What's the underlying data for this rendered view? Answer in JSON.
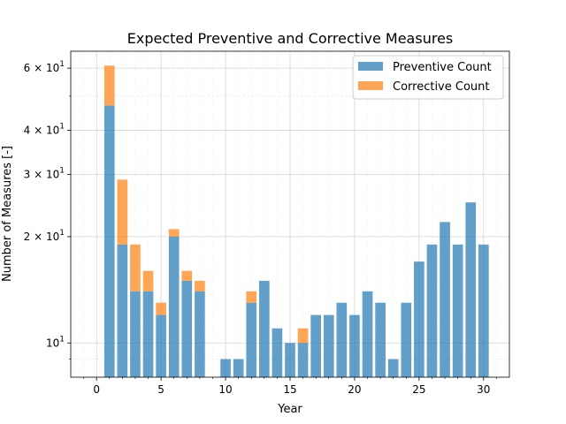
{
  "chart_data": {
    "type": "bar",
    "stacked": true,
    "title": "Expected Preventive and Corrective Measures",
    "xlabel": "Year",
    "ylabel": "Number of Measures [-]",
    "yscale": "log",
    "xlim": [
      -2,
      32
    ],
    "ylim": [
      8,
      67
    ],
    "grid": true,
    "legend_position": "top-right",
    "x_ticks": [
      {
        "value": 0,
        "label": "0"
      },
      {
        "value": 5,
        "label": "5"
      },
      {
        "value": 10,
        "label": "10"
      },
      {
        "value": 15,
        "label": "15"
      },
      {
        "value": 20,
        "label": "20"
      },
      {
        "value": 25,
        "label": "25"
      },
      {
        "value": 30,
        "label": "30"
      }
    ],
    "y_ticks": [
      {
        "value": 10,
        "base": "10",
        "exp": "1",
        "coef": ""
      },
      {
        "value": 20,
        "base": "10",
        "exp": "1",
        "coef": "2 × "
      },
      {
        "value": 30,
        "base": "10",
        "exp": "1",
        "coef": "3 × "
      },
      {
        "value": 40,
        "base": "10",
        "exp": "1",
        "coef": "4 × "
      },
      {
        "value": 60,
        "base": "10",
        "exp": "1",
        "coef": "6 × "
      }
    ],
    "x": [
      1,
      2,
      3,
      4,
      5,
      6,
      7,
      8,
      9,
      10,
      11,
      12,
      13,
      14,
      15,
      16,
      17,
      18,
      19,
      20,
      21,
      22,
      23,
      24,
      25,
      26,
      27,
      28,
      29,
      30
    ],
    "series": [
      {
        "name": "Preventive Count",
        "color": "#1f77b4",
        "values": [
          47,
          19,
          14,
          14,
          12,
          20,
          15,
          14,
          0,
          9,
          9,
          13,
          15,
          11,
          10,
          10,
          12,
          12,
          13,
          12,
          14,
          13,
          9,
          13,
          17,
          19,
          22,
          19,
          25,
          19
        ]
      },
      {
        "name": "Corrective Count",
        "color": "#ff7f0e",
        "values": [
          14,
          10,
          5,
          2,
          1,
          1,
          1,
          1,
          0,
          0,
          0,
          1,
          0,
          0,
          0,
          1,
          0,
          0,
          0,
          0,
          0,
          0,
          0,
          0,
          0,
          0,
          0,
          0,
          0,
          0
        ]
      }
    ]
  }
}
